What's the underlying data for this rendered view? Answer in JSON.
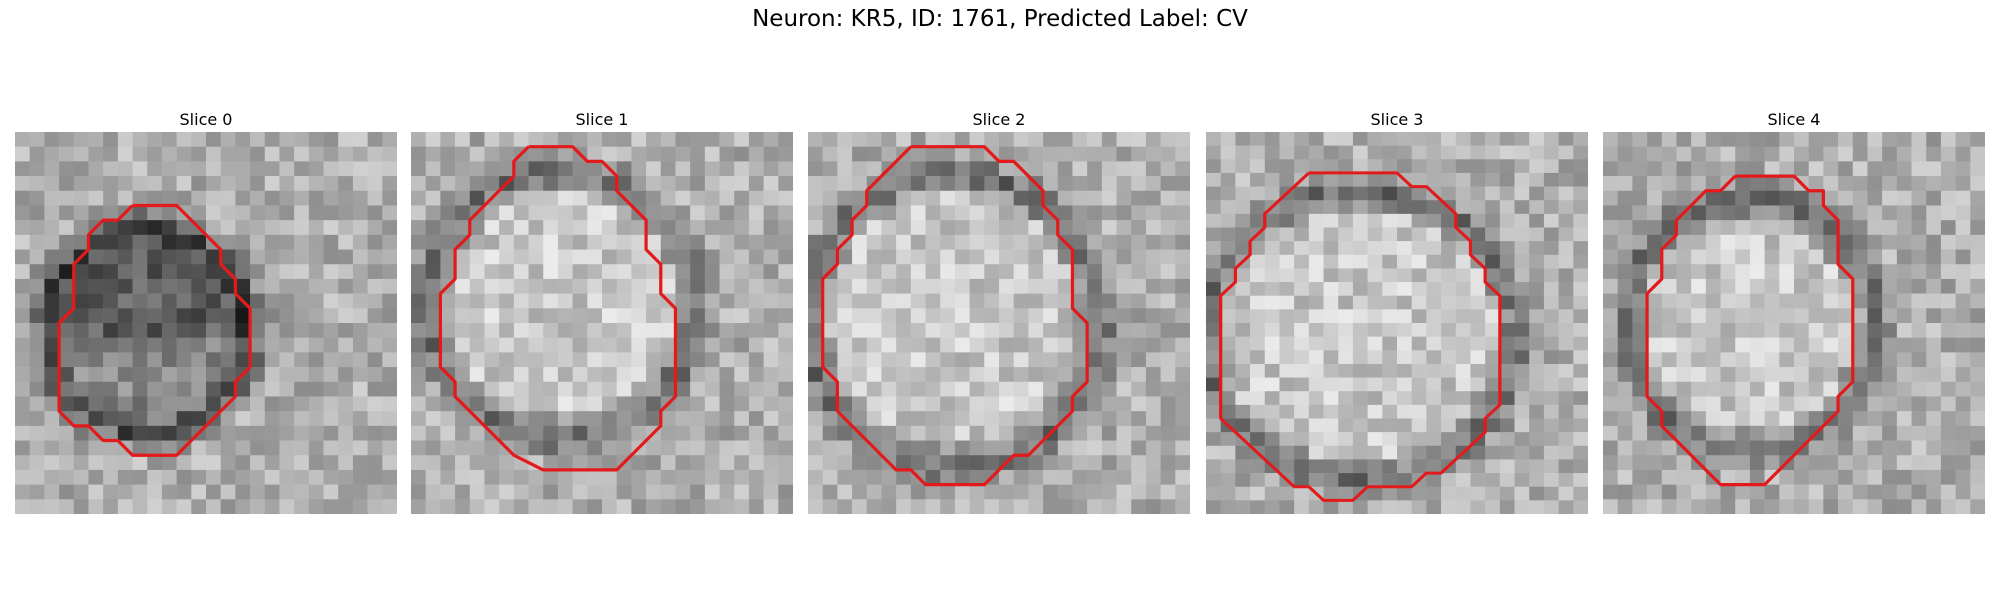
{
  "figure": {
    "title": "Neuron: KR5, ID: 1761, Predicted Label: CV"
  },
  "colors": {
    "contour": "#e31a1c",
    "background": "#ffffff"
  },
  "panels": [
    {
      "title": "Slice 0",
      "contour": [
        [
          8,
          5
        ],
        [
          11,
          5
        ],
        [
          12,
          6
        ],
        [
          13,
          7
        ],
        [
          14,
          8
        ],
        [
          14,
          9
        ],
        [
          15,
          10
        ],
        [
          15,
          11
        ],
        [
          16,
          12
        ],
        [
          16,
          13
        ],
        [
          16,
          14
        ],
        [
          16,
          15
        ],
        [
          16,
          16
        ],
        [
          15,
          17
        ],
        [
          15,
          18
        ],
        [
          14,
          19
        ],
        [
          13,
          20
        ],
        [
          12,
          21
        ],
        [
          11,
          22
        ],
        [
          8,
          22
        ],
        [
          7,
          21
        ],
        [
          6,
          21
        ],
        [
          5,
          20
        ],
        [
          4,
          20
        ],
        [
          3,
          19
        ],
        [
          3,
          18
        ],
        [
          3,
          17
        ],
        [
          3,
          16
        ],
        [
          3,
          15
        ],
        [
          3,
          14
        ],
        [
          3,
          13
        ],
        [
          4,
          12
        ],
        [
          4,
          11
        ],
        [
          4,
          10
        ],
        [
          4,
          9
        ],
        [
          5,
          8
        ],
        [
          5,
          7
        ],
        [
          6,
          6
        ],
        [
          7,
          6
        ],
        [
          8,
          5
        ]
      ]
    },
    {
      "title": "Slice 1",
      "contour": [
        [
          8,
          1
        ],
        [
          11,
          1
        ],
        [
          12,
          2
        ],
        [
          13,
          2
        ],
        [
          14,
          3
        ],
        [
          14,
          4
        ],
        [
          15,
          5
        ],
        [
          16,
          6
        ],
        [
          16,
          7
        ],
        [
          16,
          8
        ],
        [
          17,
          9
        ],
        [
          17,
          10
        ],
        [
          17,
          11
        ],
        [
          18,
          12
        ],
        [
          18,
          13
        ],
        [
          18,
          14
        ],
        [
          18,
          15
        ],
        [
          18,
          16
        ],
        [
          18,
          17
        ],
        [
          18,
          18
        ],
        [
          17,
          19
        ],
        [
          17,
          20
        ],
        [
          16,
          21
        ],
        [
          15,
          22
        ],
        [
          14,
          23
        ],
        [
          12,
          23
        ],
        [
          9,
          23
        ],
        [
          7,
          22
        ],
        [
          6,
          21
        ],
        [
          5,
          20
        ],
        [
          4,
          19
        ],
        [
          3,
          18
        ],
        [
          3,
          17
        ],
        [
          2,
          16
        ],
        [
          2,
          15
        ],
        [
          2,
          14
        ],
        [
          2,
          13
        ],
        [
          2,
          12
        ],
        [
          2,
          11
        ],
        [
          3,
          10
        ],
        [
          3,
          9
        ],
        [
          3,
          8
        ],
        [
          4,
          7
        ],
        [
          4,
          6
        ],
        [
          5,
          5
        ],
        [
          6,
          4
        ],
        [
          7,
          3
        ],
        [
          7,
          2
        ],
        [
          8,
          1
        ]
      ]
    },
    {
      "title": "Slice 2",
      "contour": [
        [
          7,
          1
        ],
        [
          12,
          1
        ],
        [
          13,
          2
        ],
        [
          14,
          2
        ],
        [
          15,
          3
        ],
        [
          16,
          4
        ],
        [
          16,
          5
        ],
        [
          17,
          6
        ],
        [
          17,
          7
        ],
        [
          18,
          8
        ],
        [
          18,
          9
        ],
        [
          18,
          10
        ],
        [
          18,
          11
        ],
        [
          18,
          12
        ],
        [
          19,
          13
        ],
        [
          19,
          14
        ],
        [
          19,
          15
        ],
        [
          19,
          16
        ],
        [
          19,
          17
        ],
        [
          18,
          18
        ],
        [
          18,
          19
        ],
        [
          17,
          20
        ],
        [
          16,
          21
        ],
        [
          15,
          22
        ],
        [
          14,
          22
        ],
        [
          13,
          23
        ],
        [
          12,
          24
        ],
        [
          11,
          24
        ],
        [
          10,
          24
        ],
        [
          8,
          24
        ],
        [
          7,
          23
        ],
        [
          6,
          23
        ],
        [
          5,
          22
        ],
        [
          4,
          21
        ],
        [
          3,
          20
        ],
        [
          2,
          19
        ],
        [
          2,
          18
        ],
        [
          2,
          17
        ],
        [
          1,
          16
        ],
        [
          1,
          15
        ],
        [
          1,
          14
        ],
        [
          1,
          13
        ],
        [
          1,
          12
        ],
        [
          1,
          11
        ],
        [
          1,
          10
        ],
        [
          2,
          9
        ],
        [
          2,
          8
        ],
        [
          3,
          7
        ],
        [
          3,
          6
        ],
        [
          4,
          5
        ],
        [
          4,
          4
        ],
        [
          5,
          3
        ],
        [
          6,
          2
        ],
        [
          7,
          1
        ]
      ]
    },
    {
      "title": "Slice 3",
      "contour": [
        [
          7,
          3
        ],
        [
          9,
          3
        ],
        [
          11,
          3
        ],
        [
          13,
          3
        ],
        [
          14,
          4
        ],
        [
          15,
          4
        ],
        [
          16,
          5
        ],
        [
          17,
          6
        ],
        [
          17,
          7
        ],
        [
          18,
          8
        ],
        [
          18,
          9
        ],
        [
          19,
          10
        ],
        [
          19,
          11
        ],
        [
          20,
          12
        ],
        [
          20,
          13
        ],
        [
          20,
          14
        ],
        [
          20,
          15
        ],
        [
          20,
          16
        ],
        [
          20,
          17
        ],
        [
          20,
          18
        ],
        [
          20,
          19
        ],
        [
          20,
          20
        ],
        [
          19,
          21
        ],
        [
          19,
          22
        ],
        [
          18,
          23
        ],
        [
          17,
          24
        ],
        [
          16,
          25
        ],
        [
          15,
          25
        ],
        [
          14,
          26
        ],
        [
          13,
          26
        ],
        [
          11,
          26
        ],
        [
          10,
          27
        ],
        [
          8,
          27
        ],
        [
          7,
          26
        ],
        [
          6,
          26
        ],
        [
          5,
          25
        ],
        [
          4,
          24
        ],
        [
          3,
          23
        ],
        [
          2,
          22
        ],
        [
          1,
          21
        ],
        [
          1,
          20
        ],
        [
          1,
          19
        ],
        [
          1,
          18
        ],
        [
          1,
          17
        ],
        [
          1,
          16
        ],
        [
          1,
          15
        ],
        [
          1,
          14
        ],
        [
          1,
          13
        ],
        [
          1,
          12
        ],
        [
          2,
          11
        ],
        [
          2,
          10
        ],
        [
          3,
          9
        ],
        [
          3,
          8
        ],
        [
          4,
          7
        ],
        [
          4,
          6
        ],
        [
          5,
          5
        ],
        [
          6,
          4
        ],
        [
          7,
          3
        ]
      ]
    },
    {
      "title": "Slice 4",
      "contour": [
        [
          9,
          3
        ],
        [
          13,
          3
        ],
        [
          14,
          4
        ],
        [
          15,
          4
        ],
        [
          15,
          5
        ],
        [
          16,
          6
        ],
        [
          16,
          7
        ],
        [
          16,
          8
        ],
        [
          16,
          9
        ],
        [
          17,
          10
        ],
        [
          17,
          11
        ],
        [
          17,
          12
        ],
        [
          17,
          13
        ],
        [
          17,
          14
        ],
        [
          17,
          15
        ],
        [
          17,
          16
        ],
        [
          17,
          17
        ],
        [
          16,
          18
        ],
        [
          16,
          19
        ],
        [
          15,
          20
        ],
        [
          14,
          21
        ],
        [
          13,
          22
        ],
        [
          12,
          23
        ],
        [
          11,
          24
        ],
        [
          10,
          24
        ],
        [
          8,
          24
        ],
        [
          7,
          23
        ],
        [
          6,
          22
        ],
        [
          5,
          21
        ],
        [
          4,
          20
        ],
        [
          4,
          19
        ],
        [
          3,
          18
        ],
        [
          3,
          17
        ],
        [
          3,
          16
        ],
        [
          3,
          15
        ],
        [
          3,
          14
        ],
        [
          3,
          13
        ],
        [
          3,
          12
        ],
        [
          3,
          11
        ],
        [
          4,
          10
        ],
        [
          4,
          9
        ],
        [
          4,
          8
        ],
        [
          5,
          7
        ],
        [
          5,
          6
        ],
        [
          6,
          5
        ],
        [
          7,
          4
        ],
        [
          8,
          4
        ],
        [
          9,
          3
        ]
      ]
    }
  ]
}
